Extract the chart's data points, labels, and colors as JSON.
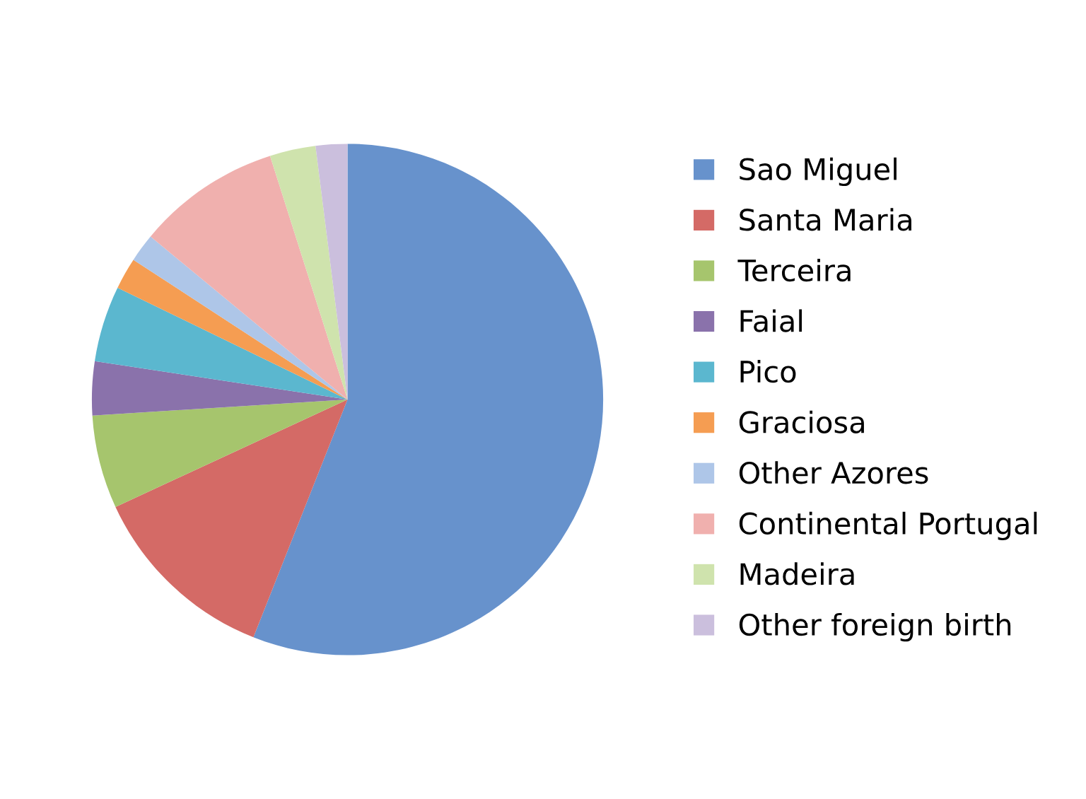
{
  "chart_data": {
    "type": "pie",
    "categories": [
      "Sao Miguel",
      "Santa Maria",
      "Terceira",
      "Faial",
      "Pico",
      "Graciosa",
      "Other Azores",
      "Continental Portugal",
      "Madeira",
      "Other foreign birth"
    ],
    "values": [
      56,
      12.1,
      5.9,
      3.4,
      4.8,
      2,
      1.8,
      9.1,
      2.9,
      2
    ],
    "colors": [
      "#6792cc",
      "#d46a66",
      "#a6c56d",
      "#8a72ab",
      "#5bb7cf",
      "#f59d52",
      "#aec6e8",
      "#f0b0ae",
      "#cfe3ad",
      "#cbbfdd"
    ],
    "legend": "right"
  }
}
